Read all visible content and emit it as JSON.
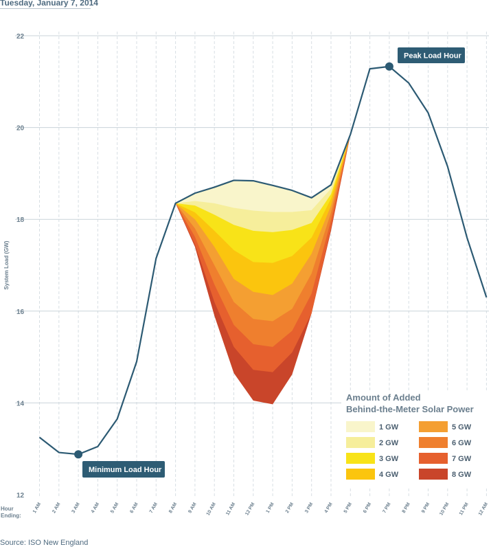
{
  "subtitle": "Tuesday, January 7, 2014",
  "source": "Source: ISO New England",
  "colors": {
    "line": "#2c5a73",
    "callout_bg": "#2e5c74",
    "grid_major": "#c9d3d9",
    "grid_minor": "#d7dee3",
    "solar": [
      "#f9f5cb",
      "#f6ee9b",
      "#f8e318",
      "#fbc50e",
      "#f49f32",
      "#ef7f2e",
      "#e6602e",
      "#c9452a"
    ]
  },
  "chart_data": {
    "type": "line",
    "ylabel": "System Load (GW)",
    "xlabel": "Hour Ending:",
    "ylim": [
      12,
      22
    ],
    "yticks": [
      12,
      14,
      16,
      18,
      20,
      22
    ],
    "grid": true,
    "categories": [
      "1 AM",
      "2 AM",
      "3 AM",
      "4 AM",
      "5 AM",
      "6 AM",
      "7 AM",
      "8 AM",
      "9 AM",
      "10 AM",
      "11 AM",
      "12 PM",
      "1 PM",
      "2 PM",
      "3 PM",
      "4 PM",
      "5 PM",
      "6 PM",
      "7 PM",
      "8 PM",
      "9 PM",
      "10 PM",
      "11 PM",
      "12 AM"
    ],
    "series": [
      {
        "values": [
          13.25,
          12.92,
          12.88,
          13.05,
          13.65,
          14.9,
          17.15,
          18.35,
          18.57,
          18.7,
          18.85,
          18.84,
          18.74,
          18.63,
          18.47,
          18.75,
          19.85,
          21.28,
          21.33,
          20.97,
          20.32,
          19.15,
          17.6,
          16.3
        ]
      }
    ],
    "solar_scenarios": {
      "title": [
        "Amount of Added",
        "Behind-the-Meter Solar Power"
      ],
      "start_index": 7,
      "levels": [
        {
          "name": "1 GW",
          "values": [
            18.35,
            18.4,
            18.35,
            18.25,
            18.19,
            18.16,
            18.16,
            18.2,
            18.67,
            19.85
          ]
        },
        {
          "name": "2 GW",
          "values": [
            18.35,
            18.3,
            18.1,
            17.88,
            17.75,
            17.72,
            17.77,
            17.92,
            18.55,
            19.85
          ]
        },
        {
          "name": "3 GW",
          "values": [
            18.35,
            18.15,
            17.75,
            17.33,
            17.07,
            17.05,
            17.2,
            17.6,
            18.45,
            19.85
          ]
        },
        {
          "name": "4 GW",
          "values": [
            18.35,
            18.0,
            17.4,
            16.7,
            16.42,
            16.35,
            16.6,
            17.25,
            18.3,
            19.85
          ]
        },
        {
          "name": "5 GW",
          "values": [
            18.35,
            17.8,
            17.0,
            16.2,
            15.83,
            15.78,
            16.05,
            16.82,
            18.15,
            19.85
          ]
        },
        {
          "name": "6 GW",
          "values": [
            18.35,
            17.62,
            16.58,
            15.7,
            15.28,
            15.22,
            15.57,
            16.38,
            17.98,
            19.85
          ]
        },
        {
          "name": "7 GW",
          "values": [
            18.35,
            17.45,
            16.2,
            15.22,
            14.72,
            14.67,
            15.1,
            15.95,
            17.8,
            19.85
          ]
        },
        {
          "name": "8 GW",
          "values": [
            18.35,
            17.4,
            15.9,
            14.65,
            14.05,
            13.97,
            14.62,
            15.95,
            17.75,
            19.85
          ]
        }
      ]
    },
    "annotations": [
      {
        "label": "Peak Load Hour",
        "index": 18
      },
      {
        "label": "Minimum Load Hour",
        "index": 2
      }
    ]
  }
}
